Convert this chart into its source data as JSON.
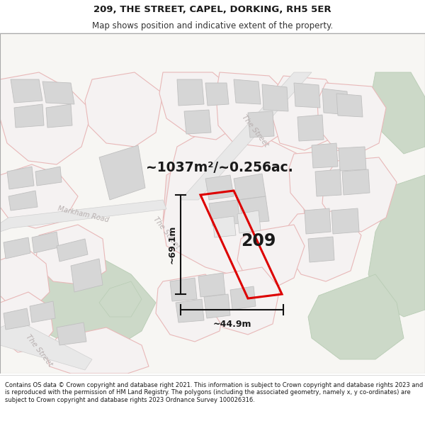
{
  "title_line1": "209, THE STREET, CAPEL, DORKING, RH5 5ER",
  "title_line2": "Map shows position and indicative extent of the property.",
  "area_text": "~1037m²/~0.256ac.",
  "label_209": "209",
  "dim_width": "~44.9m",
  "dim_height": "~69.1m",
  "footer_text": "Contains OS data © Crown copyright and database right 2021. This information is subject to Crown copyright and database rights 2023 and is reproduced with the permission of HM Land Registry. The polygons (including the associated geometry, namely x, y co-ordinates) are subject to Crown copyright and database rights 2023 Ordnance Survey 100026316.",
  "map_bg": "#f7f6f3",
  "road_fill": "#ffffff",
  "road_line": "#e8b8b8",
  "building_fill": "#d6d6d6",
  "building_edge": "#c0c0c0",
  "green_fill": "#ccd9c8",
  "green_edge": "#b8ccb4",
  "red_color": "#dd0000",
  "dim_color": "#111111",
  "label_color": "#c8b0b0",
  "text_dark": "#1a1a1a"
}
